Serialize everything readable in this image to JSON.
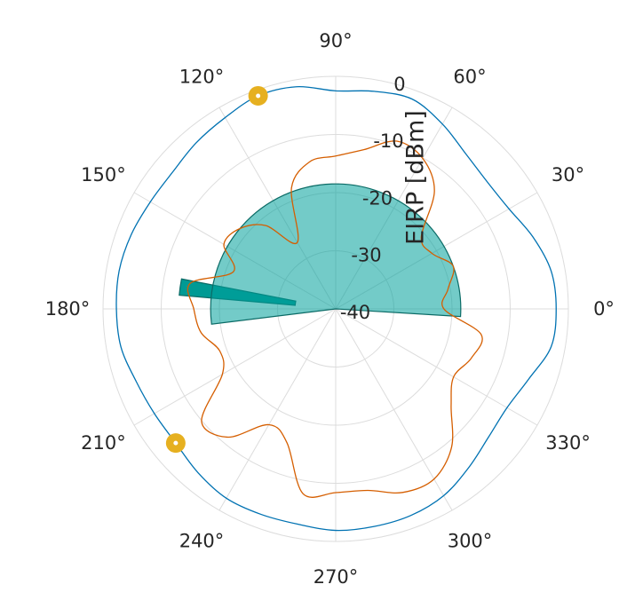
{
  "chart_data": {
    "type": "polar-line",
    "ylabel": "EIRP [dBm]",
    "rlim": [
      -40,
      0
    ],
    "radial_ticks": [
      "-40",
      "-30",
      "-20",
      "-10",
      "0"
    ],
    "angle_ticks": [
      "0°",
      "30°",
      "60°",
      "90°",
      "120°",
      "150°",
      "180°",
      "210°",
      "240°",
      "270°",
      "300°",
      "330°"
    ],
    "grid": true,
    "series": [
      {
        "color": "#0072b2",
        "points": [
          [
            0,
            -2.1
          ],
          [
            10,
            -2.4
          ],
          [
            20,
            -3.9
          ],
          [
            30,
            -5.6
          ],
          [
            40,
            -6.0
          ],
          [
            50,
            -5.2
          ],
          [
            60,
            -3.3
          ],
          [
            70,
            -1.6
          ],
          [
            80,
            -2.0
          ],
          [
            90,
            -2.5
          ],
          [
            100,
            -1.2
          ],
          [
            110,
            -1.0
          ],
          [
            120,
            -2.0
          ],
          [
            130,
            -2.7
          ],
          [
            140,
            -3.4
          ],
          [
            150,
            -3.2
          ],
          [
            160,
            -2.6
          ],
          [
            170,
            -2.2
          ],
          [
            180,
            -2.3
          ],
          [
            190,
            -2.5
          ],
          [
            200,
            -3.5
          ],
          [
            210,
            -4.0
          ],
          [
            220,
            -4.1
          ],
          [
            230,
            -3.2
          ],
          [
            240,
            -2.4
          ],
          [
            250,
            -2.4
          ],
          [
            260,
            -2.4
          ],
          [
            270,
            -1.9
          ],
          [
            280,
            -2.0
          ],
          [
            290,
            -2.2
          ],
          [
            300,
            -2.9
          ],
          [
            310,
            -4.4
          ],
          [
            320,
            -5.7
          ],
          [
            330,
            -6.0
          ],
          [
            340,
            -4.7
          ],
          [
            350,
            -2.4
          ],
          [
            360,
            -2.1
          ]
        ]
      },
      {
        "color": "#d55e00",
        "points": [
          [
            0,
            -21.4
          ],
          [
            10,
            -20.4
          ],
          [
            20,
            -18.5
          ],
          [
            30,
            -20.9
          ],
          [
            40,
            -20.8
          ],
          [
            50,
            -13.6
          ],
          [
            60,
            -10.1
          ],
          [
            70,
            -9.3
          ],
          [
            80,
            -12.2
          ],
          [
            90,
            -13.7
          ],
          [
            100,
            -14.3
          ],
          [
            110,
            -17.8
          ],
          [
            120,
            -26.8
          ],
          [
            130,
            -21.3
          ],
          [
            140,
            -18.5
          ],
          [
            150,
            -17.8
          ],
          [
            160,
            -21.3
          ],
          [
            170,
            -14.6
          ],
          [
            180,
            -15.6
          ],
          [
            190,
            -16.5
          ],
          [
            200,
            -18.8
          ],
          [
            210,
            -17.5
          ],
          [
            220,
            -9.9
          ],
          [
            230,
            -11.2
          ],
          [
            240,
            -17.0
          ],
          [
            250,
            -15.5
          ],
          [
            260,
            -7.7
          ],
          [
            270,
            -8.4
          ],
          [
            280,
            -8.3
          ],
          [
            290,
            -6.4
          ],
          [
            300,
            -6.2
          ],
          [
            310,
            -9.0
          ],
          [
            320,
            -14.1
          ],
          [
            330,
            -16.6
          ],
          [
            340,
            -15.2
          ],
          [
            350,
            -14.6
          ],
          [
            360,
            -21.4
          ]
        ]
      }
    ],
    "markers": [
      {
        "color": "#e6b020",
        "theta": 110,
        "r": -1.0
      },
      {
        "color": "#e6b020",
        "theta": 220,
        "r": -4.1
      }
    ],
    "bars": [
      {
        "color": "#009a94",
        "opacity": 1.0,
        "theta_start": 169,
        "theta_end": 175,
        "r_range": [
          -33,
          -13
        ]
      },
      {
        "color": "#00a09a",
        "opacity": 0.55,
        "theta_start": -3.5,
        "theta_end": 187,
        "r_range": [
          -40,
          -18.5
        ]
      }
    ]
  }
}
